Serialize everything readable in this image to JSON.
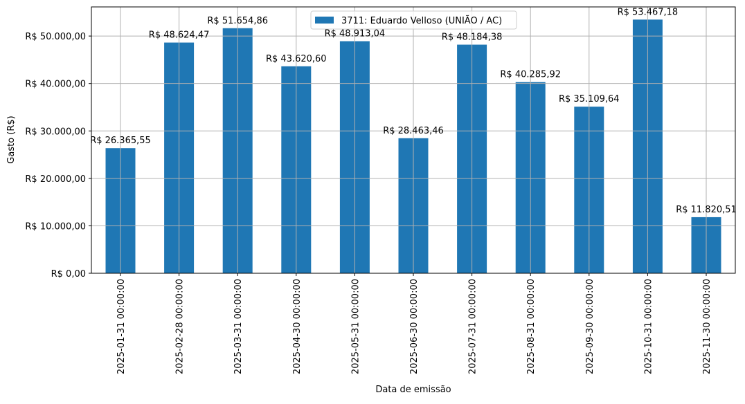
{
  "chart_data": {
    "type": "bar",
    "title": "",
    "xlabel": "Data de emissão",
    "ylabel": "Gasto (R$)",
    "categories": [
      "2025-01-31 00:00:00",
      "2025-02-28 00:00:00",
      "2025-03-31 00:00:00",
      "2025-04-30 00:00:00",
      "2025-05-31 00:00:00",
      "2025-06-30 00:00:00",
      "2025-07-31 00:00:00",
      "2025-08-31 00:00:00",
      "2025-09-30 00:00:00",
      "2025-10-31 00:00:00",
      "2025-11-30 00:00:00"
    ],
    "series": [
      {
        "name": "3711: Eduardo Velloso (UNIÃO / AC)",
        "color": "#1f77b4",
        "values": [
          26365.55,
          48624.47,
          51654.86,
          43620.6,
          48913.04,
          28463.46,
          48184.38,
          40285.92,
          35109.64,
          53467.18,
          11820.51
        ]
      }
    ],
    "data_labels": [
      "R$ 26.365,55",
      "R$ 48.624,47",
      "R$ 51.654,86",
      "R$ 43.620,60",
      "R$ 48.913,04",
      "R$ 28.463,46",
      "R$ 48.184,38",
      "R$ 40.285,92",
      "R$ 35.109,64",
      "R$ 53.467,18",
      "R$ 11.820,51"
    ],
    "yticks": [
      0,
      10000,
      20000,
      30000,
      40000,
      50000
    ],
    "ytick_labels": [
      "R$ 0,00",
      "R$ 10.000,00",
      "R$ 20.000,00",
      "R$ 30.000,00",
      "R$ 40.000,00",
      "R$ 50.000,00"
    ],
    "ylim": [
      0,
      56140
    ],
    "grid": true,
    "legend_position": "top-center"
  }
}
